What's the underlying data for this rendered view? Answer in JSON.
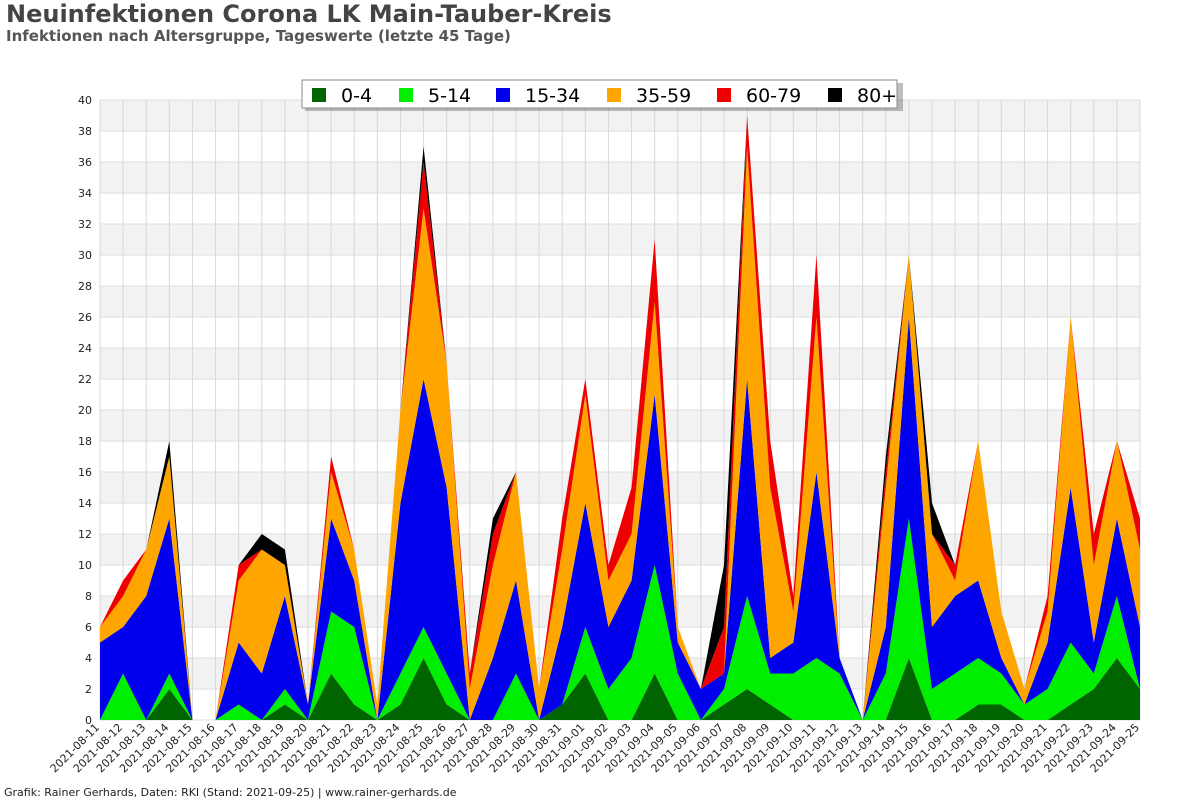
{
  "title": "Neuinfektionen Corona LK Main-Tauber-Kreis",
  "subtitle": "Infektionen nach Altersgruppe, Tageswerte (letzte 45 Tage)",
  "footer": "Grafik: Rainer Gerhards, Daten: RKI (Stand: 2021-09-25) | www.rainer-gerhards.de",
  "chart_data": {
    "type": "area",
    "stacked": true,
    "ylim": [
      0,
      40
    ],
    "yticks": [
      0,
      2,
      4,
      6,
      8,
      10,
      12,
      14,
      16,
      18,
      20,
      22,
      24,
      26,
      28,
      30,
      32,
      34,
      36,
      38,
      40
    ],
    "grid": true,
    "legend_position": "top-center",
    "categories": [
      "2021-08-11",
      "2021-08-12",
      "2021-08-13",
      "2021-08-14",
      "2021-08-15",
      "2021-08-16",
      "2021-08-17",
      "2021-08-18",
      "2021-08-19",
      "2021-08-20",
      "2021-08-21",
      "2021-08-22",
      "2021-08-23",
      "2021-08-24",
      "2021-08-25",
      "2021-08-26",
      "2021-08-27",
      "2021-08-28",
      "2021-08-29",
      "2021-08-30",
      "2021-08-31",
      "2021-09-01",
      "2021-09-02",
      "2021-09-03",
      "2021-09-04",
      "2021-09-05",
      "2021-09-06",
      "2021-09-07",
      "2021-09-08",
      "2021-09-09",
      "2021-09-10",
      "2021-09-11",
      "2021-09-12",
      "2021-09-13",
      "2021-09-14",
      "2021-09-15",
      "2021-09-16",
      "2021-09-17",
      "2021-09-18",
      "2021-09-19",
      "2021-09-20",
      "2021-09-21",
      "2021-09-22",
      "2021-09-23",
      "2021-09-24",
      "2021-09-25"
    ],
    "series": [
      {
        "name": "0-4",
        "color": "#006400",
        "values": [
          0,
          0,
          0,
          2,
          0,
          0,
          0,
          0,
          1,
          0,
          3,
          1,
          0,
          1,
          4,
          1,
          0,
          0,
          0,
          0,
          1,
          3,
          0,
          0,
          3,
          0,
          0,
          1,
          2,
          1,
          0,
          0,
          0,
          0,
          0,
          4,
          0,
          0,
          1,
          1,
          0,
          0,
          1,
          2,
          4,
          2
        ]
      },
      {
        "name": "5-14",
        "color": "#00ee00",
        "values": [
          0,
          3,
          0,
          1,
          0,
          0,
          1,
          0,
          1,
          0,
          4,
          5,
          0,
          2,
          2,
          2,
          0,
          0,
          3,
          0,
          0,
          3,
          2,
          4,
          7,
          3,
          0,
          1,
          6,
          2,
          3,
          4,
          3,
          0,
          3,
          9,
          2,
          3,
          3,
          2,
          1,
          2,
          4,
          1,
          4,
          0
        ]
      },
      {
        "name": "15-34",
        "color": "#0000ee",
        "values": [
          5,
          3,
          8,
          10,
          0,
          0,
          4,
          3,
          6,
          1,
          6,
          3,
          0,
          11,
          16,
          12,
          0,
          4,
          6,
          0,
          5,
          8,
          4,
          5,
          11,
          2,
          2,
          1,
          14,
          1,
          2,
          12,
          1,
          0,
          3,
          13,
          4,
          5,
          5,
          1,
          0,
          3,
          10,
          2,
          5,
          4
        ]
      },
      {
        "name": "35-59",
        "color": "#ffa500",
        "values": [
          1,
          2,
          3,
          4,
          0,
          0,
          4,
          8,
          2,
          0,
          3,
          2,
          1,
          6,
          11,
          8,
          2,
          6,
          7,
          2,
          5,
          7,
          3,
          3,
          6,
          1,
          0,
          0,
          15,
          11,
          2,
          10,
          0,
          0,
          9,
          4,
          6,
          1,
          9,
          3,
          1,
          2,
          11,
          5,
          5,
          5
        ]
      },
      {
        "name": "60-79",
        "color": "#ee0000",
        "values": [
          0,
          1,
          0,
          0,
          0,
          0,
          1,
          0,
          0,
          0,
          1,
          0,
          0,
          0,
          3,
          0,
          1,
          2,
          0,
          0,
          2,
          1,
          1,
          3,
          4,
          0,
          0,
          3,
          2,
          3,
          1,
          4,
          0,
          0,
          1,
          0,
          0,
          1,
          0,
          0,
          0,
          1,
          0,
          2,
          0,
          2
        ]
      },
      {
        "name": "80+",
        "color": "#000000",
        "values": [
          0,
          0,
          0,
          1,
          0,
          0,
          0,
          1,
          1,
          0,
          0,
          0,
          0,
          0,
          1,
          0,
          0,
          1,
          0,
          0,
          0,
          0,
          0,
          0,
          0,
          0,
          0,
          4,
          0,
          0,
          0,
          0,
          0,
          0,
          1,
          0,
          2,
          0,
          0,
          0,
          0,
          0,
          0,
          0,
          0,
          0
        ]
      }
    ]
  }
}
